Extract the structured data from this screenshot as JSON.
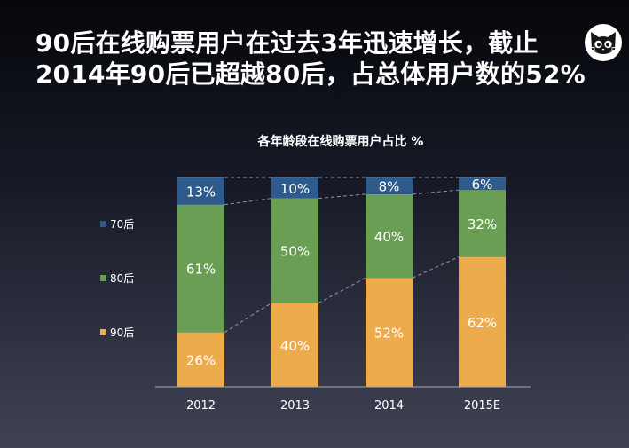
{
  "slide": {
    "title_line1": "90后在线购票用户在过去3年迅速增长，截止",
    "title_line2": "2014年90后已超越80后，占总体用户数的52%",
    "logo_icon": "cat-face-icon"
  },
  "colors": {
    "series_70s": "#2f5b8c",
    "series_80s": "#6a9e54",
    "series_90s": "#edac4c",
    "axis": "#aaaaaa",
    "connector": "#8f96a6"
  },
  "chart_data": {
    "type": "bar",
    "stacked": true,
    "title": "各年龄段在线购票用户占比 %",
    "categories": [
      "2012",
      "2013",
      "2014",
      "2015E"
    ],
    "series": [
      {
        "name": "90后",
        "values": [
          26,
          40,
          52,
          62
        ],
        "labels": [
          "26%",
          "40%",
          "52%",
          "62%"
        ]
      },
      {
        "name": "80后",
        "values": [
          61,
          50,
          40,
          32
        ],
        "labels": [
          "61%",
          "50%",
          "40%",
          "32%"
        ]
      },
      {
        "name": "70后",
        "values": [
          13,
          10,
          8,
          6
        ],
        "labels": [
          "13%",
          "10%",
          "8%",
          "6%"
        ]
      }
    ],
    "ylim": [
      0,
      100
    ],
    "legend_position": "left",
    "legend_order": [
      "70后",
      "80后",
      "90后"
    ],
    "grid": false,
    "connector_lines": true
  }
}
